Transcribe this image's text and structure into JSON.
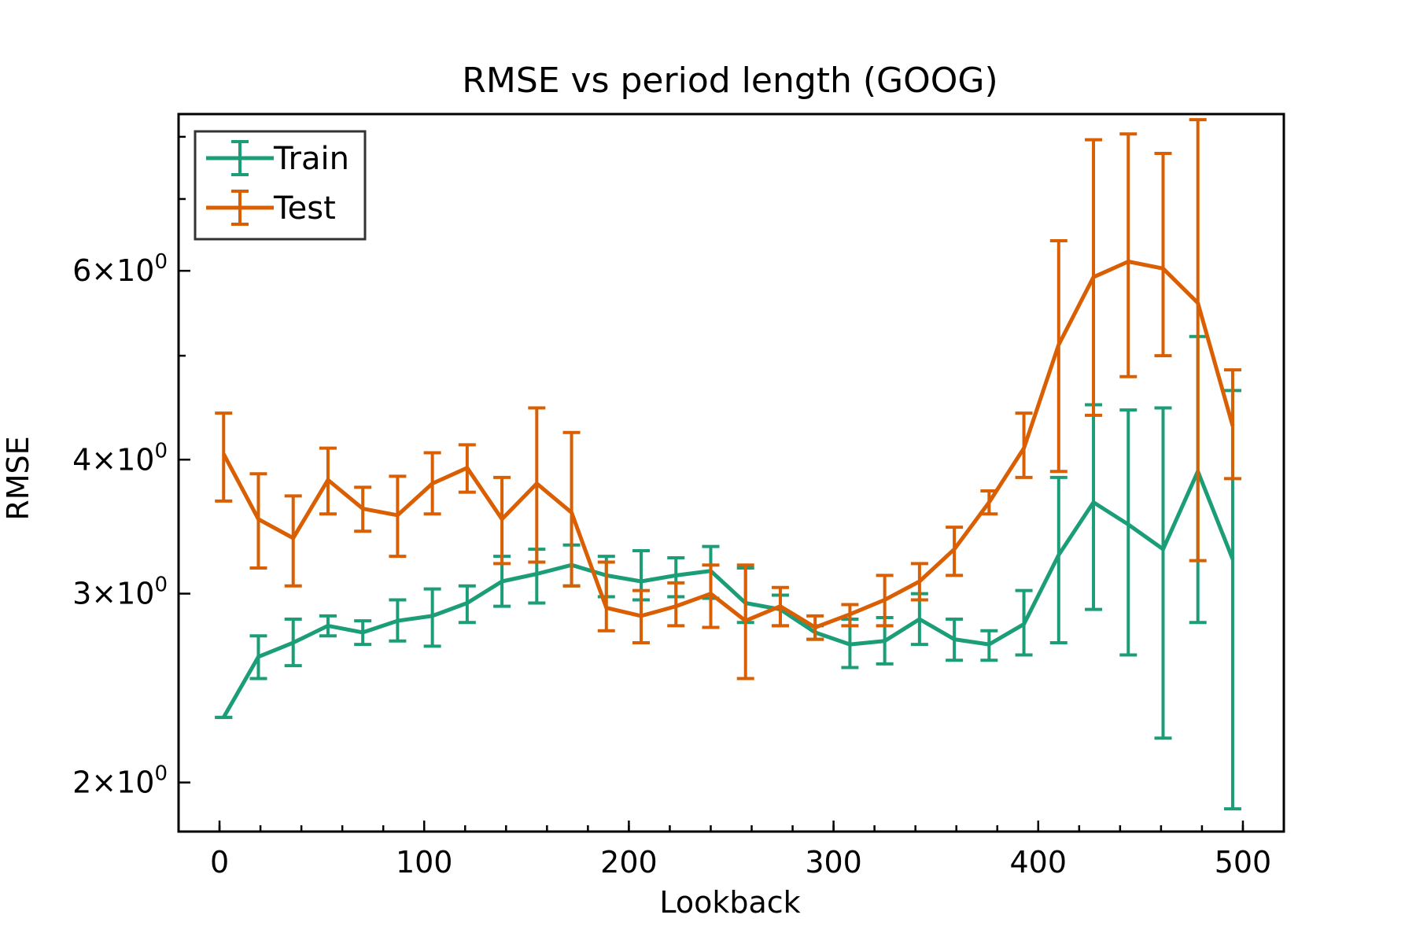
{
  "chart_data": {
    "type": "line",
    "title": "RMSE vs period length (GOOG)",
    "xlabel": "Lookback",
    "ylabel": "RMSE",
    "y_scale": "log",
    "xlim": [
      -20,
      520
    ],
    "ylim": [
      1.8,
      8.4
    ],
    "x_ticks": [
      0,
      100,
      200,
      300,
      400,
      500
    ],
    "x_tick_labels": [
      "0",
      "100",
      "200",
      "300",
      "400",
      "500"
    ],
    "y_ticks": [
      2,
      3,
      4,
      6
    ],
    "y_tick_labels": [
      {
        "base": "2",
        "times": "×",
        "exp_base": "10",
        "exp": "0"
      },
      {
        "base": "3",
        "times": "×",
        "exp_base": "10",
        "exp": "0"
      },
      {
        "base": "4",
        "times": "×",
        "exp_base": "10",
        "exp": "0"
      },
      {
        "base": "6",
        "times": "×",
        "exp_base": "10",
        "exp": "0"
      }
    ],
    "x_minor_ticks": [
      -20,
      0,
      20,
      40,
      60,
      80,
      100,
      120,
      140,
      160,
      180,
      200,
      220,
      240,
      260,
      280,
      300,
      320,
      340,
      360,
      380,
      400,
      420,
      440,
      460,
      480,
      500,
      520
    ],
    "y_minor_ticks": [
      5,
      7,
      8
    ],
    "grid": false,
    "legend_position": "top-left",
    "x": [
      2,
      19,
      36,
      53,
      70,
      87,
      104,
      121,
      138,
      155,
      172,
      189,
      206,
      223,
      240,
      257,
      274,
      291,
      308,
      325,
      342,
      359,
      376,
      393,
      410,
      427,
      444,
      461,
      478,
      495
    ],
    "series": [
      {
        "name": "Train",
        "color": "#1b9e77",
        "values": [
          2.3,
          2.62,
          2.7,
          2.8,
          2.76,
          2.83,
          2.86,
          2.94,
          3.08,
          3.13,
          3.19,
          3.12,
          3.08,
          3.12,
          3.15,
          2.94,
          2.9,
          2.76,
          2.69,
          2.71,
          2.84,
          2.72,
          2.69,
          2.81,
          3.26,
          3.65,
          3.48,
          3.3,
          3.9,
          3.23
        ],
        "err_low": [
          2.3,
          2.5,
          2.57,
          2.74,
          2.69,
          2.71,
          2.68,
          2.82,
          2.92,
          2.94,
          3.05,
          2.98,
          2.96,
          2.98,
          2.97,
          2.82,
          2.8,
          2.72,
          2.56,
          2.58,
          2.69,
          2.6,
          2.6,
          2.63,
          2.7,
          2.9,
          2.63,
          2.2,
          2.82,
          1.89
        ],
        "err_high": [
          2.3,
          2.74,
          2.84,
          2.86,
          2.83,
          2.96,
          3.03,
          3.05,
          3.25,
          3.3,
          3.33,
          3.25,
          3.29,
          3.24,
          3.32,
          3.17,
          2.99,
          2.8,
          2.84,
          2.85,
          3.0,
          2.84,
          2.77,
          3.02,
          3.85,
          4.5,
          4.45,
          4.47,
          5.21,
          4.64
        ]
      },
      {
        "name": "Test",
        "color": "#d95f02",
        "values": [
          4.05,
          3.52,
          3.38,
          3.83,
          3.6,
          3.55,
          3.8,
          3.93,
          3.52,
          3.8,
          3.57,
          2.91,
          2.86,
          2.92,
          3.0,
          2.83,
          2.92,
          2.79,
          2.87,
          2.96,
          3.08,
          3.3,
          3.65,
          4.1,
          5.12,
          5.92,
          6.12,
          6.03,
          5.6,
          4.3
        ],
        "err_low": [
          3.66,
          3.17,
          3.05,
          3.56,
          3.43,
          3.25,
          3.56,
          3.73,
          3.2,
          3.21,
          3.05,
          2.77,
          2.7,
          2.8,
          2.79,
          2.5,
          2.8,
          2.72,
          2.8,
          2.8,
          2.96,
          3.12,
          3.56,
          3.85,
          3.9,
          4.4,
          4.78,
          5.0,
          3.22,
          3.84
        ],
        "err_high": [
          4.42,
          3.88,
          3.7,
          4.1,
          3.77,
          3.86,
          4.06,
          4.13,
          3.85,
          4.47,
          4.24,
          3.21,
          3.02,
          3.07,
          3.19,
          3.19,
          3.04,
          2.86,
          2.93,
          3.12,
          3.2,
          3.46,
          3.74,
          4.42,
          6.4,
          7.95,
          8.05,
          7.72,
          8.3,
          4.85
        ]
      }
    ]
  }
}
